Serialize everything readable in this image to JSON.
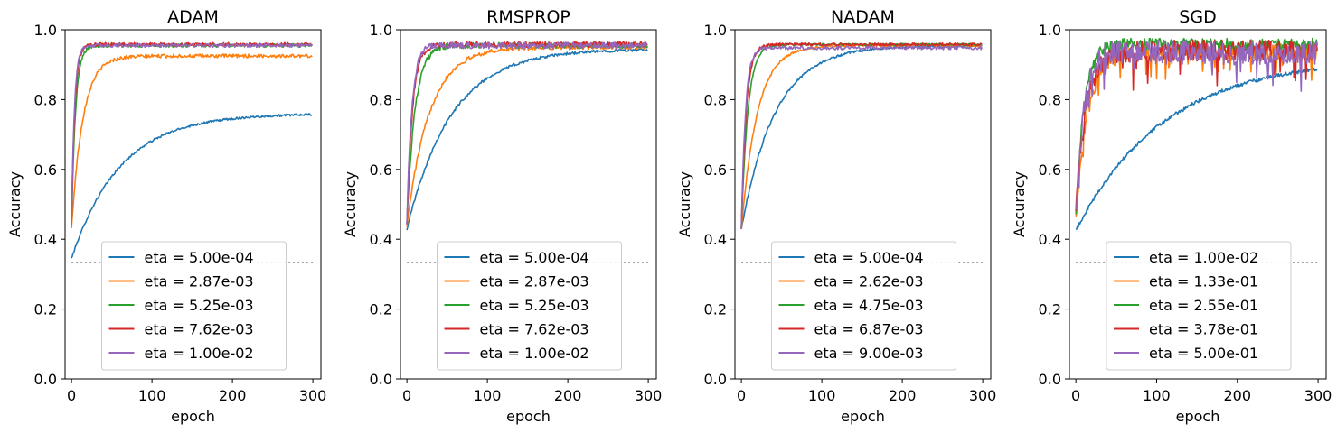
{
  "chart_data": [
    {
      "type": "line",
      "title": "ADAM",
      "xlabel": "epoch",
      "ylabel": "Accuracy",
      "xlim": [
        -8,
        310
      ],
      "ylim": [
        0.0,
        1.0
      ],
      "xticks": [
        "0",
        "100",
        "200",
        "300"
      ],
      "yticks": [
        "0.0",
        "0.2",
        "0.4",
        "0.6",
        "0.8",
        "1.0"
      ],
      "baseline": {
        "y": 0.333,
        "style": "dotted",
        "color": "#808080"
      },
      "legend_loc": "lower-center",
      "series": [
        {
          "name": "eta = 5.00e-04",
          "color": "#1f77b4",
          "start": 0.345,
          "plateau": 0.76,
          "tau": 60,
          "noise": 0.003
        },
        {
          "name": "eta = 2.87e-03",
          "color": "#ff7f0e",
          "start": 0.43,
          "plateau": 0.925,
          "tau": 14,
          "noise": 0.005
        },
        {
          "name": "eta = 5.25e-03",
          "color": "#2ca02c",
          "start": 0.44,
          "plateau": 0.955,
          "tau": 5,
          "noise": 0.005
        },
        {
          "name": "eta = 7.62e-03",
          "color": "#d62728",
          "start": 0.44,
          "plateau": 0.958,
          "tau": 4,
          "noise": 0.005
        },
        {
          "name": "eta = 1.00e-02",
          "color": "#9467bd",
          "start": 0.44,
          "plateau": 0.955,
          "tau": 3.5,
          "noise": 0.005
        }
      ]
    },
    {
      "type": "line",
      "title": "RMSPROP",
      "xlabel": "epoch",
      "ylabel": "Accuracy",
      "xlim": [
        -8,
        310
      ],
      "ylim": [
        0.0,
        1.0
      ],
      "xticks": [
        "0",
        "100",
        "200",
        "300"
      ],
      "yticks": [
        "0.0",
        "0.2",
        "0.4",
        "0.6",
        "0.8",
        "1.0"
      ],
      "baseline": {
        "y": 0.333,
        "style": "dotted",
        "color": "#808080"
      },
      "legend_loc": "lower-center",
      "series": [
        {
          "name": "eta = 5.00e-04",
          "color": "#1f77b4",
          "start": 0.43,
          "plateau": 0.945,
          "tau": 55,
          "noise": 0.004
        },
        {
          "name": "eta = 2.87e-03",
          "color": "#ff7f0e",
          "start": 0.44,
          "plateau": 0.95,
          "tau": 28,
          "noise": 0.006
        },
        {
          "name": "eta = 5.25e-03",
          "color": "#2ca02c",
          "start": 0.45,
          "plateau": 0.955,
          "tau": 10,
          "noise": 0.008
        },
        {
          "name": "eta = 7.62e-03",
          "color": "#d62728",
          "start": 0.45,
          "plateau": 0.958,
          "tau": 7,
          "noise": 0.008
        },
        {
          "name": "eta = 1.00e-02",
          "color": "#9467bd",
          "start": 0.45,
          "plateau": 0.955,
          "tau": 6,
          "noise": 0.009
        }
      ]
    },
    {
      "type": "line",
      "title": "NADAM",
      "xlabel": "epoch",
      "ylabel": "Accuracy",
      "xlim": [
        -8,
        310
      ],
      "ylim": [
        0.0,
        1.0
      ],
      "xticks": [
        "0",
        "100",
        "200",
        "300"
      ],
      "yticks": [
        "0.0",
        "0.2",
        "0.4",
        "0.6",
        "0.8",
        "1.0"
      ],
      "baseline": {
        "y": 0.333,
        "style": "dotted",
        "color": "#808080"
      },
      "legend_loc": "lower-center",
      "series": [
        {
          "name": "eta = 5.00e-04",
          "color": "#1f77b4",
          "start": 0.43,
          "plateau": 0.955,
          "tau": 42,
          "noise": 0.003
        },
        {
          "name": "eta = 2.62e-03",
          "color": "#ff7f0e",
          "start": 0.43,
          "plateau": 0.955,
          "tau": 20,
          "noise": 0.003
        },
        {
          "name": "eta = 4.75e-03",
          "color": "#2ca02c",
          "start": 0.43,
          "plateau": 0.958,
          "tau": 8,
          "noise": 0.003
        },
        {
          "name": "eta = 6.87e-03",
          "color": "#d62728",
          "start": 0.43,
          "plateau": 0.958,
          "tau": 6,
          "noise": 0.004
        },
        {
          "name": "eta = 9.00e-03",
          "color": "#9467bd",
          "start": 0.43,
          "plateau": 0.948,
          "tau": 5,
          "noise": 0.005
        }
      ]
    },
    {
      "type": "line",
      "title": "SGD",
      "xlabel": "epoch",
      "ylabel": "Accuracy",
      "xlim": [
        -8,
        310
      ],
      "ylim": [
        0.0,
        1.0
      ],
      "xticks": [
        "0",
        "100",
        "200",
        "300"
      ],
      "yticks": [
        "0.0",
        "0.2",
        "0.4",
        "0.6",
        "0.8",
        "1.0"
      ],
      "baseline": {
        "y": 0.333,
        "style": "dotted",
        "color": "#808080"
      },
      "legend_loc": "lower-center",
      "series": [
        {
          "name": "eta = 1.00e-02",
          "color": "#1f77b4",
          "start": 0.425,
          "plateau": 0.92,
          "tau": 110,
          "noise": 0.005
        },
        {
          "name": "eta = 1.33e-01",
          "color": "#ff7f0e",
          "start": 0.45,
          "plateau": 0.935,
          "tau": 14,
          "noise": 0.025
        },
        {
          "name": "eta = 2.55e-01",
          "color": "#2ca02c",
          "start": 0.46,
          "plateau": 0.958,
          "tau": 10,
          "noise": 0.018
        },
        {
          "name": "eta = 3.78e-01",
          "color": "#d62728",
          "start": 0.46,
          "plateau": 0.94,
          "tau": 12,
          "noise": 0.03
        },
        {
          "name": "eta = 5.00e-01",
          "color": "#9467bd",
          "start": 0.46,
          "plateau": 0.935,
          "tau": 10,
          "noise": 0.035
        }
      ]
    }
  ]
}
